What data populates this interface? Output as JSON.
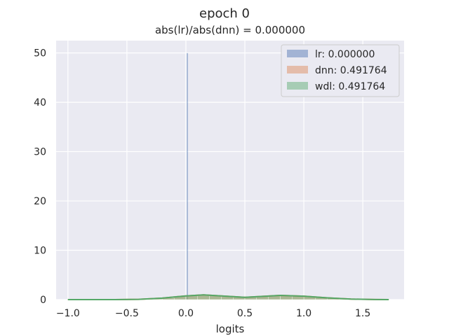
{
  "figure": {
    "suptitle": "epoch 0"
  },
  "chart_data": {
    "type": "histogram",
    "title": "abs(lr)/abs(dnn) = 0.000000",
    "xlabel": "logits",
    "ylabel": "",
    "xlim": [
      -1.1,
      1.85
    ],
    "ylim": [
      0,
      52.5
    ],
    "grid": true,
    "legend_position": "top-right",
    "x_ticks": [
      -1.0,
      -0.5,
      0.0,
      0.5,
      1.0,
      1.5
    ],
    "x_tick_labels": [
      "−1.0",
      "−0.5",
      "0.0",
      "0.5",
      "1.0",
      "1.5"
    ],
    "y_ticks": [
      0,
      10,
      20,
      30,
      40,
      50
    ],
    "y_tick_labels": [
      "0",
      "10",
      "20",
      "30",
      "40",
      "50"
    ],
    "series": [
      {
        "name": "lr: 0.000000",
        "color": "#4c72b0",
        "bins": [
          [
            0.005,
            0.02,
            50
          ]
        ],
        "kde": []
      },
      {
        "name": "dnn: 0.491764",
        "color": "#dd8452",
        "bins": [
          [
            -0.4,
            -0.3,
            0.05
          ],
          [
            -0.3,
            -0.2,
            0.15
          ],
          [
            -0.2,
            -0.1,
            0.35
          ],
          [
            -0.1,
            0.0,
            0.6
          ],
          [
            0.0,
            0.1,
            0.85
          ],
          [
            0.1,
            0.2,
            0.95
          ],
          [
            0.2,
            0.3,
            0.85
          ],
          [
            0.3,
            0.4,
            0.6
          ],
          [
            0.4,
            0.5,
            0.45
          ],
          [
            0.5,
            0.6,
            0.5
          ],
          [
            0.6,
            0.7,
            0.7
          ],
          [
            0.7,
            0.8,
            0.9
          ],
          [
            0.8,
            0.9,
            0.85
          ],
          [
            0.9,
            1.0,
            0.75
          ],
          [
            1.0,
            1.1,
            0.6
          ],
          [
            1.1,
            1.2,
            0.4
          ],
          [
            1.2,
            1.3,
            0.25
          ],
          [
            1.3,
            1.4,
            0.12
          ],
          [
            1.4,
            1.5,
            0.06
          ],
          [
            1.5,
            1.6,
            0.03
          ]
        ],
        "kde": [
          [
            -1.0,
            0.0
          ],
          [
            -0.6,
            0.0
          ],
          [
            -0.4,
            0.05
          ],
          [
            -0.2,
            0.3
          ],
          [
            0.0,
            0.75
          ],
          [
            0.15,
            0.95
          ],
          [
            0.3,
            0.75
          ],
          [
            0.5,
            0.45
          ],
          [
            0.65,
            0.65
          ],
          [
            0.8,
            0.85
          ],
          [
            1.0,
            0.7
          ],
          [
            1.2,
            0.35
          ],
          [
            1.4,
            0.1
          ],
          [
            1.6,
            0.02
          ],
          [
            1.72,
            0.0
          ]
        ]
      },
      {
        "name": "wdl: 0.491764",
        "color": "#55a868",
        "bins": [
          [
            -0.4,
            -0.3,
            0.05
          ],
          [
            -0.3,
            -0.2,
            0.15
          ],
          [
            -0.2,
            -0.1,
            0.35
          ],
          [
            -0.1,
            0.0,
            0.6
          ],
          [
            0.0,
            0.1,
            0.85
          ],
          [
            0.1,
            0.2,
            0.95
          ],
          [
            0.2,
            0.3,
            0.85
          ],
          [
            0.3,
            0.4,
            0.6
          ],
          [
            0.4,
            0.5,
            0.45
          ],
          [
            0.5,
            0.6,
            0.5
          ],
          [
            0.6,
            0.7,
            0.7
          ],
          [
            0.7,
            0.8,
            0.9
          ],
          [
            0.8,
            0.9,
            0.85
          ],
          [
            0.9,
            1.0,
            0.75
          ],
          [
            1.0,
            1.1,
            0.6
          ],
          [
            1.1,
            1.2,
            0.4
          ],
          [
            1.2,
            1.3,
            0.25
          ],
          [
            1.3,
            1.4,
            0.12
          ],
          [
            1.4,
            1.5,
            0.06
          ],
          [
            1.5,
            1.6,
            0.03
          ]
        ],
        "kde": [
          [
            -1.0,
            0.0
          ],
          [
            -0.6,
            0.0
          ],
          [
            -0.4,
            0.05
          ],
          [
            -0.2,
            0.3
          ],
          [
            0.0,
            0.75
          ],
          [
            0.15,
            0.95
          ],
          [
            0.3,
            0.75
          ],
          [
            0.5,
            0.45
          ],
          [
            0.65,
            0.65
          ],
          [
            0.8,
            0.85
          ],
          [
            1.0,
            0.7
          ],
          [
            1.2,
            0.35
          ],
          [
            1.4,
            0.1
          ],
          [
            1.6,
            0.02
          ],
          [
            1.72,
            0.0
          ]
        ]
      }
    ]
  }
}
